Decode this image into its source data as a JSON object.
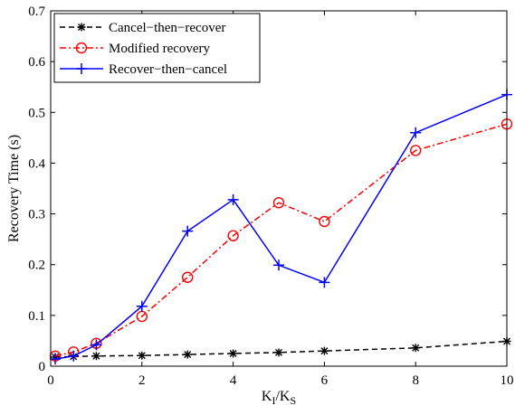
{
  "chart_data": {
    "type": "line",
    "xlabel_main": "K",
    "xlabel_sub1": "I",
    "xlabel_slash": "/K",
    "xlabel_sub2": "S",
    "ylabel": "Recovery Time (s)",
    "xlim": [
      0,
      10
    ],
    "ylim": [
      0,
      0.7
    ],
    "xticks": [
      0,
      2,
      4,
      6,
      8,
      10
    ],
    "xtick_labels": [
      "0",
      "2",
      "4",
      "6",
      "8",
      "10"
    ],
    "yticks": [
      0,
      0.1,
      0.2,
      0.3,
      0.4,
      0.5,
      0.6,
      0.7
    ],
    "ytick_labels": [
      "0",
      "0.1",
      "0.2",
      "0.3",
      "0.4",
      "0.5",
      "0.6",
      "0.7"
    ],
    "grid": false,
    "legend_position": "top-left",
    "series": [
      {
        "name": "Cancel−then−recover",
        "color": "#000000",
        "line_style": "dashed",
        "marker": "asterisk",
        "x": [
          0.1,
          0.5,
          1,
          2,
          3,
          4,
          5,
          6,
          8,
          10
        ],
        "y": [
          0.018,
          0.019,
          0.02,
          0.021,
          0.023,
          0.025,
          0.027,
          0.03,
          0.036,
          0.049
        ]
      },
      {
        "name": "Modified recovery",
        "color": "#ff0000",
        "line_style": "dashdot",
        "marker": "circle",
        "x": [
          0.1,
          0.5,
          1,
          2,
          3,
          4,
          5,
          6,
          8,
          10
        ],
        "y": [
          0.02,
          0.028,
          0.045,
          0.098,
          0.175,
          0.257,
          0.322,
          0.285,
          0.425,
          0.477
        ]
      },
      {
        "name": "Recover−then−cancel",
        "color": "#0000ff",
        "line_style": "solid",
        "marker": "plus",
        "x": [
          0.1,
          0.5,
          1,
          2,
          3,
          4,
          5,
          6,
          8,
          10
        ],
        "y": [
          0.014,
          0.02,
          0.042,
          0.118,
          0.266,
          0.328,
          0.199,
          0.165,
          0.46,
          0.535
        ]
      }
    ]
  }
}
